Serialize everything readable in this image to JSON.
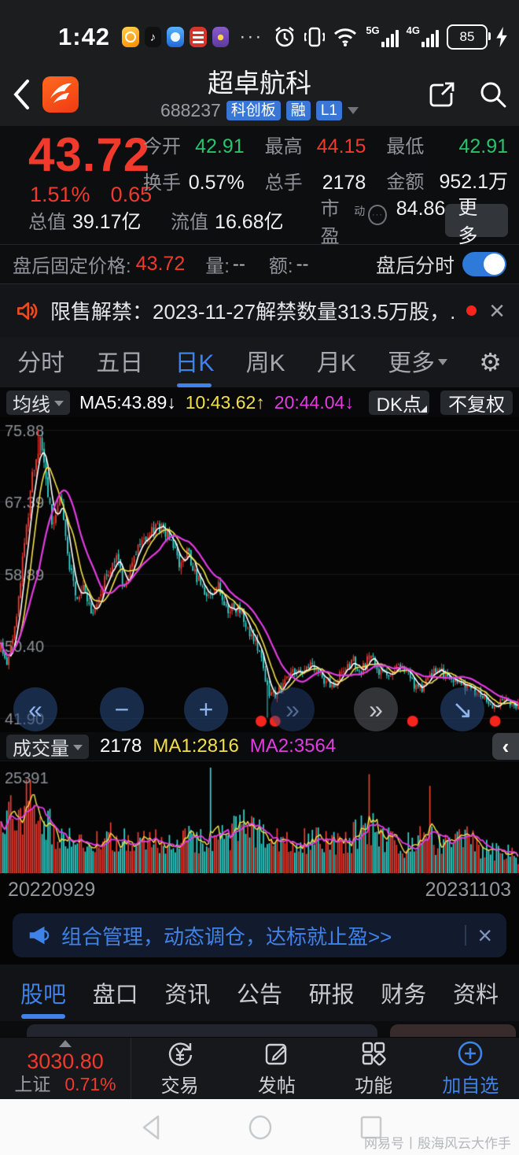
{
  "colors": {
    "accent_blue": "#3f82e8",
    "up_red": "#ef3b30",
    "down_cyan": "#2fd7cf",
    "ma5": "#ffffff",
    "ma10": "#f2e04a",
    "ma20": "#e23ce2",
    "price_red": "#f03a2c",
    "green": "#27c46d"
  },
  "status_bar": {
    "time": "1:42",
    "ellipsis": "···",
    "net1": "5G",
    "net2": "4G",
    "battery": "85",
    "app_icons": [
      {
        "name": "weibo-app-icon",
        "glyph": ""
      },
      {
        "name": "douyin-app-icon",
        "glyph": "♪"
      },
      {
        "name": "blue-app-icon",
        "glyph": ""
      },
      {
        "name": "red-app-icon",
        "glyph": ""
      },
      {
        "name": "purple-app-icon",
        "glyph": ""
      }
    ]
  },
  "header": {
    "title": "超卓航科",
    "code": "688237",
    "badges": [
      {
        "label": "科创板"
      },
      {
        "label": "融"
      },
      {
        "label": "L1"
      }
    ]
  },
  "quote": {
    "price": "43.72",
    "change_pct": "1.51%",
    "change_abs": "0.65",
    "row1": [
      {
        "label": "今开",
        "value": "42.91"
      },
      {
        "label": "最高",
        "value": "44.15"
      },
      {
        "label": "最低",
        "value": "42.91"
      }
    ],
    "row2": [
      {
        "label": "换手",
        "value": "0.57%"
      },
      {
        "label": "总手",
        "value": "2178"
      },
      {
        "label": "金额",
        "value": "952.1万"
      }
    ],
    "row3": [
      {
        "label": "总值",
        "value": "39.17亿"
      },
      {
        "label": "流值",
        "value": "16.68亿"
      },
      {
        "label": "市盈",
        "sup": "动",
        "value": "84.86"
      }
    ],
    "more_label": "更多"
  },
  "after_hours": {
    "label": "盘后固定价格:",
    "price": "43.72",
    "vol_label": "量:",
    "vol_value": "--",
    "amt_label": "额:",
    "amt_value": "--",
    "toggle_label": "盘后分时"
  },
  "announcement": {
    "text": "限售解禁：2023-11-27解禁数量313.5万股，...",
    "close": "×"
  },
  "period_tabs": {
    "items": [
      {
        "label": "分时"
      },
      {
        "label": "五日"
      },
      {
        "label": "日K"
      },
      {
        "label": "周K"
      },
      {
        "label": "月K"
      },
      {
        "label": "更多"
      }
    ],
    "active_index": 2
  },
  "kline_header": {
    "ma_selector": "均线",
    "ma5": "MA5:43.89",
    "ma5_arrow": "↓",
    "ma10": "10:43.62",
    "ma10_arrow": "↑",
    "ma20": "20:44.04",
    "ma20_arrow": "↓",
    "dk_button": "DK点",
    "fq_button": "不复权"
  },
  "chart_controls": [
    {
      "name": "pan-left",
      "glyph": "«"
    },
    {
      "name": "zoom-out",
      "glyph": "−"
    },
    {
      "name": "zoom-in",
      "glyph": "+"
    },
    {
      "name": "pan-right-dim",
      "glyph": "»"
    },
    {
      "name": "pan-right",
      "glyph": "»"
    },
    {
      "name": "jump-to-latest",
      "glyph": "↘"
    }
  ],
  "volume_header": {
    "selector": "成交量",
    "current": "2178",
    "ma1": "MA1:2816",
    "ma2": "MA2:3564",
    "collapse": "‹"
  },
  "x_axis": {
    "start": "20220929",
    "end": "20231103"
  },
  "banner": {
    "text": "组合管理，动态调仓，达标就止盈>>",
    "close": "×"
  },
  "section_tabs": {
    "items": [
      {
        "label": "股吧"
      },
      {
        "label": "盘口"
      },
      {
        "label": "资讯"
      },
      {
        "label": "公告"
      },
      {
        "label": "研报"
      },
      {
        "label": "财务"
      },
      {
        "label": "资料"
      }
    ],
    "active_index": 0
  },
  "bottom_bar": {
    "index_value": "3030.80",
    "index_name": "上证",
    "index_change": "0.71%",
    "trade": "交易",
    "post": "发帖",
    "functions": "功能",
    "add_watchlist": "加自选"
  },
  "watermark": "网易号丨殷海风云大作手",
  "chart_data": {
    "type": "candlestick",
    "title": "超卓航科 688237 日K",
    "x_range": [
      "20220929",
      "20231103"
    ],
    "y_axis_labels": [
      75.88,
      67.39,
      58.89,
      50.4,
      41.9
    ],
    "price_range": [
      41.9,
      75.88
    ],
    "volume_max": 25391,
    "current": {
      "close": 43.72,
      "open": 42.91,
      "high": 44.15,
      "low": 42.91,
      "volume": 2178,
      "ma5": 43.89,
      "ma10": 43.62,
      "ma20": 44.04,
      "vol_ma1": 2816,
      "vol_ma2": 3564
    },
    "n_candles": 265,
    "seed": 20231103,
    "price_waypoints": [
      [
        0,
        50.2
      ],
      [
        0.01,
        48.0
      ],
      [
        0.025,
        51.5
      ],
      [
        0.045,
        62.0
      ],
      [
        0.06,
        70.0
      ],
      [
        0.075,
        74.5
      ],
      [
        0.085,
        71.5
      ],
      [
        0.1,
        64.5
      ],
      [
        0.115,
        67.5
      ],
      [
        0.13,
        61.0
      ],
      [
        0.145,
        55.8
      ],
      [
        0.16,
        57.5
      ],
      [
        0.175,
        53.8
      ],
      [
        0.19,
        56.5
      ],
      [
        0.205,
        58.8
      ],
      [
        0.225,
        60.5
      ],
      [
        0.24,
        57.2
      ],
      [
        0.26,
        61.0
      ],
      [
        0.285,
        64.0
      ],
      [
        0.305,
        64.8
      ],
      [
        0.325,
        63.2
      ],
      [
        0.345,
        60.3
      ],
      [
        0.36,
        61.5
      ],
      [
        0.38,
        58.2
      ],
      [
        0.4,
        56.4
      ],
      [
        0.42,
        57.6
      ],
      [
        0.44,
        54.6
      ],
      [
        0.46,
        54.9
      ],
      [
        0.48,
        52.2
      ],
      [
        0.5,
        49.6
      ],
      [
        0.515,
        45.3
      ],
      [
        0.53,
        44.3
      ],
      [
        0.55,
        46.4
      ],
      [
        0.565,
        47.6
      ],
      [
        0.58,
        46.8
      ],
      [
        0.6,
        48.4
      ],
      [
        0.615,
        47.1
      ],
      [
        0.63,
        46.1
      ],
      [
        0.645,
        45.9
      ],
      [
        0.66,
        47.2
      ],
      [
        0.68,
        48.8
      ],
      [
        0.695,
        47.5
      ],
      [
        0.715,
        49.3
      ],
      [
        0.73,
        47.2
      ],
      [
        0.75,
        46.8
      ],
      [
        0.77,
        48.0
      ],
      [
        0.785,
        47.4
      ],
      [
        0.8,
        45.9
      ],
      [
        0.815,
        45.2
      ],
      [
        0.83,
        46.9
      ],
      [
        0.845,
        47.9
      ],
      [
        0.86,
        47.0
      ],
      [
        0.88,
        46.4
      ],
      [
        0.9,
        45.6
      ],
      [
        0.92,
        45.0
      ],
      [
        0.94,
        44.3
      ],
      [
        0.955,
        43.3
      ],
      [
        0.97,
        44.1
      ],
      [
        0.985,
        43.6
      ],
      [
        1,
        43.5
      ]
    ],
    "volume_waypoints": [
      [
        0,
        15000
      ],
      [
        0.03,
        21000
      ],
      [
        0.06,
        20000
      ],
      [
        0.09,
        15000
      ],
      [
        0.12,
        10000
      ],
      [
        0.15,
        8500
      ],
      [
        0.18,
        11000
      ],
      [
        0.21,
        12000
      ],
      [
        0.25,
        8000
      ],
      [
        0.3,
        9500
      ],
      [
        0.34,
        10500
      ],
      [
        0.38,
        9000
      ],
      [
        0.42,
        9500
      ],
      [
        0.45,
        12000
      ],
      [
        0.47,
        13500
      ],
      [
        0.5,
        11000
      ],
      [
        0.53,
        10000
      ],
      [
        0.57,
        9500
      ],
      [
        0.6,
        10500
      ],
      [
        0.63,
        8500
      ],
      [
        0.66,
        9000
      ],
      [
        0.7,
        12000
      ],
      [
        0.72,
        13000
      ],
      [
        0.74,
        10000
      ],
      [
        0.78,
        8000
      ],
      [
        0.81,
        11500
      ],
      [
        0.84,
        9500
      ],
      [
        0.87,
        7500
      ],
      [
        0.9,
        10000
      ],
      [
        0.93,
        7000
      ],
      [
        0.96,
        6000
      ],
      [
        1,
        6500
      ]
    ],
    "volume_spikes": [
      {
        "t": 0.05,
        "value": 22500,
        "dir": "up"
      },
      {
        "t": 0.405,
        "value": 25391,
        "dir": "down"
      },
      {
        "t": 0.712,
        "value": 23800,
        "dir": "up"
      },
      {
        "t": 0.828,
        "value": 21000,
        "dir": "up"
      }
    ],
    "event_markers_t": [
      0.503,
      0.53,
      0.795,
      0.954
    ],
    "up_color": "#ef3b30",
    "down_color": "#2fd7cf"
  }
}
